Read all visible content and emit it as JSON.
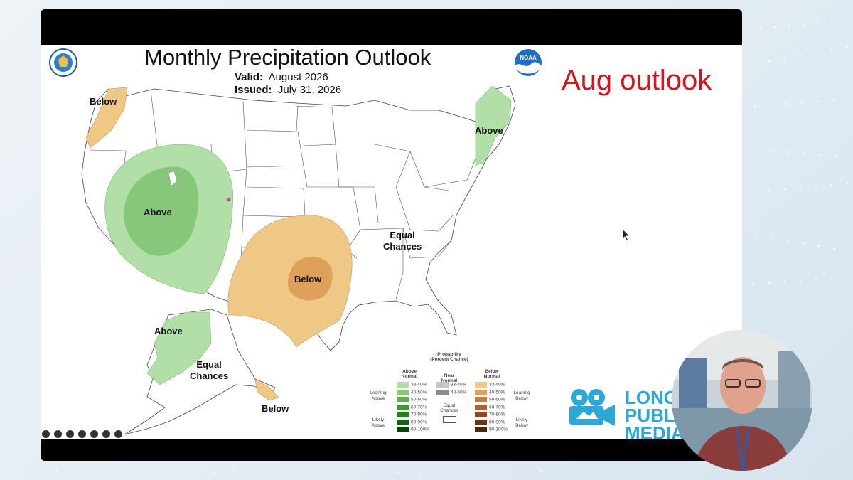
{
  "slide": {
    "title": "Monthly Precipitation Outlook",
    "valid_label": "Valid:",
    "valid_value": "August 2026",
    "issued_label": "Issued:",
    "issued_value": "July 31, 2026",
    "annotation": "Aug outlook"
  },
  "map_labels": {
    "nw_below": "Below",
    "west_above": "Above",
    "south_below": "Below",
    "ne_above": "Above",
    "equal_chances_line1": "Equal",
    "equal_chances_line2": "Chances",
    "ak_above": "Above",
    "ak_equal_line1": "Equal",
    "ak_equal_line2": "Chances",
    "ak_below": "Below"
  },
  "legend": {
    "title_line1": "Probability",
    "title_line2": "(Percent Chance)",
    "above_header_line1": "Above",
    "above_header_line2": "Normal",
    "near_header_line1": "Near",
    "near_header_line2": "Normal",
    "below_header_line1": "Below",
    "below_header_line2": "Normal",
    "leaning_above_line1": "Leaning",
    "leaning_above_line2": "Above",
    "likely_above_line1": "Likely",
    "likely_above_line2": "Above",
    "leaning_below_line1": "Leaning",
    "leaning_below_line2": "Below",
    "likely_below_line1": "Likely",
    "likely_below_line2": "Below",
    "equal_line1": "Equal",
    "equal_line2": "Chances",
    "above_rows": [
      {
        "label": "33-40%",
        "color": "#b2dfa8"
      },
      {
        "label": "40-50%",
        "color": "#86c77a"
      },
      {
        "label": "50-60%",
        "color": "#5fb052"
      },
      {
        "label": "60-70%",
        "color": "#3b9a35"
      },
      {
        "label": "70-80%",
        "color": "#22801f"
      },
      {
        "label": "80-90%",
        "color": "#146214"
      },
      {
        "label": "90-100%",
        "color": "#0a420b"
      }
    ],
    "near_rows": [
      {
        "label": "33-40%",
        "color": "#c6c6c6"
      },
      {
        "label": "40-50%",
        "color": "#8c8c8c"
      }
    ],
    "below_rows": [
      {
        "label": "33-40%",
        "color": "#f0c886"
      },
      {
        "label": "40-50%",
        "color": "#dea05a"
      },
      {
        "label": "50-60%",
        "color": "#c77d3c"
      },
      {
        "label": "60-70%",
        "color": "#ae6130"
      },
      {
        "label": "70-80%",
        "color": "#8f4626"
      },
      {
        "label": "80-90%",
        "color": "#6e331d"
      },
      {
        "label": "90-100%",
        "color": "#4b2413"
      }
    ]
  },
  "branding": {
    "logo_line1": "LONG",
    "logo_line2": "PUBL",
    "logo_line3": "MEDIA",
    "noaa_text": "NOAA"
  },
  "colors": {
    "above_light": "#b2dfa8",
    "above_medium": "#86c77a",
    "below_light": "#f0c886",
    "below_medium": "#dea05a",
    "annotation": "#d4141b",
    "brand": "#2aa9d9"
  }
}
